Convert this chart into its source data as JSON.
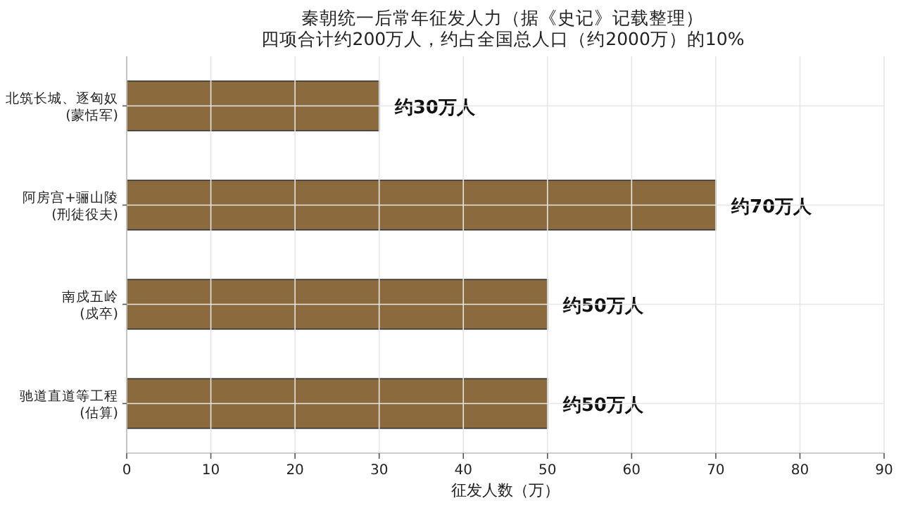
{
  "chart_data": {
    "type": "bar",
    "orientation": "horizontal",
    "title": "秦朝统一后常年征发人力（据《史记》记载整理）",
    "subtitle": "四项合计约200万人，约占全国总人口（约2000万）的10%",
    "xlabel": "征发人数（万）",
    "categories": [
      "北筑长城、逐匈奴\n(蒙恬军)",
      "阿房宫+骊山陵\n(刑徒役夫)",
      "南戍五岭\n(戍卒)",
      "驰道直道等工程\n(估算)"
    ],
    "values": [
      30,
      70,
      50,
      50
    ],
    "value_labels": [
      "约30万人",
      "约70万人",
      "约50万人",
      "约50万人"
    ],
    "color": "#8b6b3d",
    "xlim": [
      0,
      90
    ],
    "xticks": [
      0,
      10,
      20,
      30,
      40,
      50,
      60,
      70,
      80,
      90
    ],
    "grid": true
  }
}
